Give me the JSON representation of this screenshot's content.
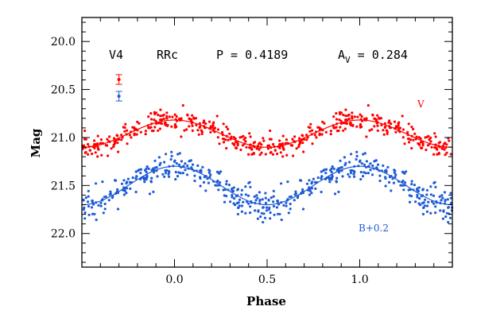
{
  "chart_data": {
    "type": "scatter",
    "title": "",
    "xlabel": "Phase",
    "ylabel": "Mag",
    "xlim": [
      -0.5,
      1.5
    ],
    "ylim": [
      22.35,
      19.75
    ],
    "y_inverted": true,
    "xticks": [
      "0.0",
      "0.5",
      "1.0"
    ],
    "yticks": [
      "20.0",
      "20.5",
      "21.0",
      "21.5",
      "22.0"
    ],
    "header": {
      "star": "V4",
      "type": "RRc",
      "period": "P = 0.4189",
      "amplitude_symbol": "A",
      "amplitude_subscript": "V",
      "amplitude_value": " = 0.284"
    },
    "series": [
      {
        "name": "V",
        "color": "#ff0000",
        "model": {
          "mean": 20.96,
          "amplitude": 0.142,
          "max_phase": 0.0
        },
        "scatter_sigma": 0.06,
        "error_bar": 0.05
      },
      {
        "name": "B+0.2",
        "color": "#1e5bd6",
        "model": {
          "mean": 21.5,
          "amplitude": 0.2,
          "max_phase": 0.0
        },
        "scatter_sigma": 0.08,
        "error_bar": 0.05
      }
    ],
    "grid": false
  }
}
